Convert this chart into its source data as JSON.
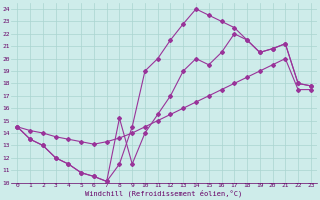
{
  "xlabel": "Windchill (Refroidissement éolien,°C)",
  "xlim": [
    -0.5,
    23.5
  ],
  "ylim": [
    10,
    24.5
  ],
  "xticks": [
    0,
    1,
    2,
    3,
    4,
    5,
    6,
    7,
    8,
    9,
    10,
    11,
    12,
    13,
    14,
    15,
    16,
    17,
    18,
    19,
    20,
    21,
    22,
    23
  ],
  "yticks": [
    10,
    11,
    12,
    13,
    14,
    15,
    16,
    17,
    18,
    19,
    20,
    21,
    22,
    23,
    24
  ],
  "bg_color": "#ceecea",
  "grid_color": "#aad4d0",
  "line_color": "#993399",
  "line1_x": [
    0,
    1,
    2,
    3,
    4,
    5,
    6,
    7,
    8,
    9,
    10,
    11,
    12,
    13,
    14,
    15,
    16,
    17,
    18,
    19,
    20,
    21,
    22,
    23
  ],
  "line1_y": [
    14.5,
    13.5,
    13.0,
    12.0,
    11.5,
    10.8,
    10.5,
    10.1,
    15.2,
    11.5,
    14.0,
    15.5,
    17.0,
    19.0,
    20.0,
    19.5,
    20.5,
    22.0,
    21.5,
    20.5,
    20.8,
    21.2,
    18.0,
    17.8
  ],
  "line2_x": [
    0,
    1,
    2,
    3,
    4,
    5,
    6,
    7,
    8,
    9,
    10,
    11,
    12,
    13,
    14,
    15,
    16,
    17,
    18,
    19,
    20,
    21,
    22,
    23
  ],
  "line2_y": [
    14.5,
    13.5,
    13.0,
    12.0,
    11.5,
    10.8,
    10.5,
    10.1,
    11.5,
    14.5,
    19.0,
    20.0,
    21.5,
    22.8,
    24.0,
    23.5,
    23.0,
    22.5,
    21.5,
    20.5,
    20.8,
    21.2,
    18.0,
    17.8
  ],
  "line3_x": [
    0,
    1,
    2,
    3,
    4,
    5,
    6,
    7,
    8,
    9,
    10,
    11,
    12,
    13,
    14,
    15,
    16,
    17,
    18,
    19,
    20,
    21,
    22,
    23
  ],
  "line3_y": [
    14.5,
    14.2,
    14.0,
    13.7,
    13.5,
    13.3,
    13.1,
    13.3,
    13.6,
    14.0,
    14.5,
    15.0,
    15.5,
    16.0,
    16.5,
    17.0,
    17.5,
    18.0,
    18.5,
    19.0,
    19.5,
    20.0,
    17.5,
    17.5
  ]
}
